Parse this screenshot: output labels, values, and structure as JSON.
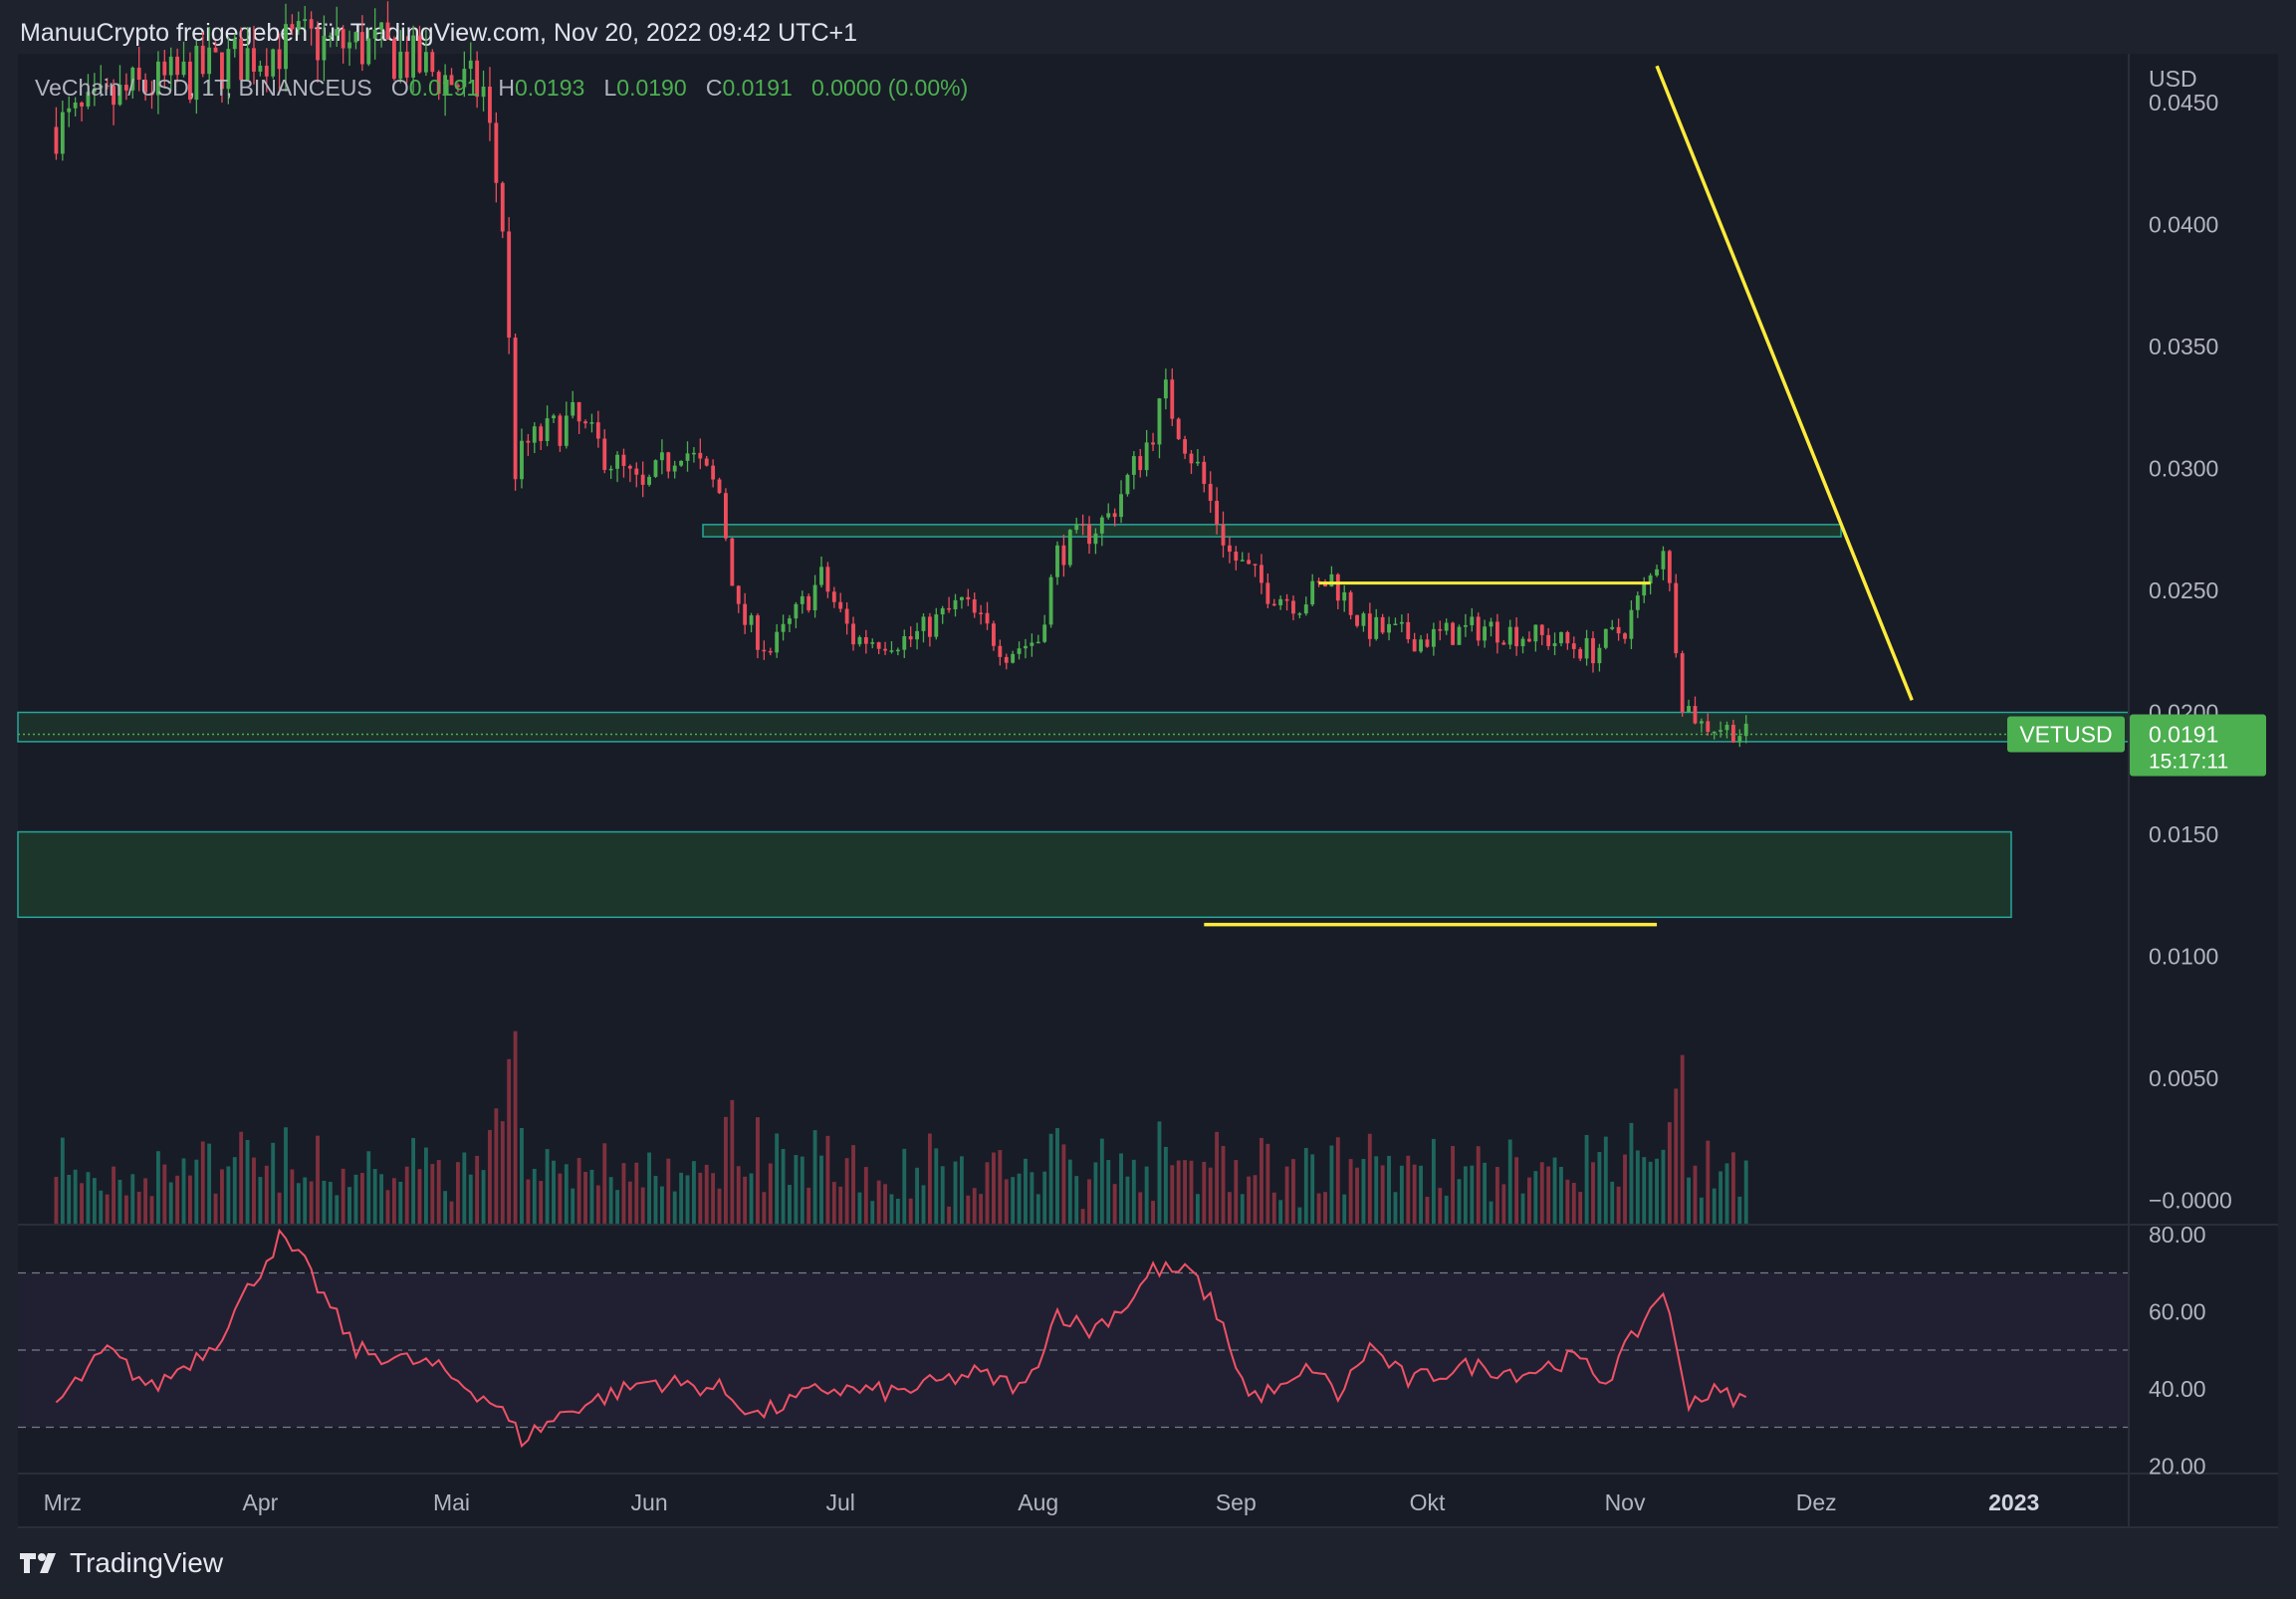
{
  "header": {
    "publisher_line": "ManuuCrypto freigegeben für TradingView.com, Nov 20, 2022 09:42 UTC+1"
  },
  "legend": {
    "symbol": "VeChain / USD, 1T, BINANCEUS",
    "o_label": "O",
    "o_value": "0.0191",
    "h_label": "H",
    "h_value": "0.0193",
    "l_label": "L",
    "l_value": "0.0190",
    "c_label": "C",
    "c_value": "0.0191",
    "change": "0.0000 (0.00%)"
  },
  "price_axis": {
    "currency": "USD",
    "ticks": [
      "0.0450",
      "0.0400",
      "0.0350",
      "0.0300",
      "0.0250",
      "0.0200",
      "0.0150",
      "0.0100",
      "0.0050",
      "−0.0000"
    ]
  },
  "rsi_axis": {
    "ticks": [
      "80.00",
      "60.00",
      "40.00",
      "20.00"
    ]
  },
  "time_axis": {
    "ticks": [
      "Mrz",
      "Apr",
      "Mai",
      "Jun",
      "Jul",
      "Aug",
      "Sep",
      "Okt",
      "Nov",
      "Dez",
      "2023"
    ]
  },
  "last_price": {
    "symbol_tag": "VETUSD",
    "price": "0.0191",
    "countdown": "15:17:11"
  },
  "brand": {
    "name": "TradingView"
  },
  "colors": {
    "background": "#181c27",
    "up": "#4caf50",
    "down": "#ef4d5c",
    "zone_fill": "#1f3b2e",
    "zone_border": "#26a69a",
    "yellow": "#ffeb3b",
    "rsi_line": "#f05166",
    "rsi_band": "#7e57c2",
    "price_tag": "#4caf50"
  },
  "chart_data": {
    "type": "candlestick",
    "symbol": "VETUSD",
    "interval": "1D",
    "price_range": [
      -0.001,
      0.047
    ],
    "close_path": [
      {
        "x": "2022-02-28",
        "y": 0.044
      },
      {
        "x": "2022-03-05",
        "y": 0.0445
      },
      {
        "x": "2022-03-12",
        "y": 0.0455
      },
      {
        "x": "2022-03-20",
        "y": 0.046
      },
      {
        "x": "2022-03-31",
        "y": 0.047
      },
      {
        "x": "2022-04-08",
        "y": 0.0475
      },
      {
        "x": "2022-04-20",
        "y": 0.0472
      },
      {
        "x": "2022-04-30",
        "y": 0.046
      },
      {
        "x": "2022-05-06",
        "y": 0.0455
      },
      {
        "x": "2022-05-09",
        "y": 0.04
      },
      {
        "x": "2022-05-11",
        "y": 0.03
      },
      {
        "x": "2022-05-13",
        "y": 0.031
      },
      {
        "x": "2022-05-20",
        "y": 0.032
      },
      {
        "x": "2022-05-31",
        "y": 0.029
      },
      {
        "x": "2022-06-06",
        "y": 0.031
      },
      {
        "x": "2022-06-12",
        "y": 0.029
      },
      {
        "x": "2022-06-15",
        "y": 0.024
      },
      {
        "x": "2022-06-20",
        "y": 0.0225
      },
      {
        "x": "2022-06-28",
        "y": 0.0255
      },
      {
        "x": "2022-07-03",
        "y": 0.023
      },
      {
        "x": "2022-07-12",
        "y": 0.023
      },
      {
        "x": "2022-07-20",
        "y": 0.0245
      },
      {
        "x": "2022-07-27",
        "y": 0.0225
      },
      {
        "x": "2022-08-01",
        "y": 0.023
      },
      {
        "x": "2022-08-04",
        "y": 0.0265
      },
      {
        "x": "2022-08-12",
        "y": 0.028
      },
      {
        "x": "2022-08-18",
        "y": 0.031
      },
      {
        "x": "2022-08-21",
        "y": 0.033
      },
      {
        "x": "2022-08-26",
        "y": 0.03
      },
      {
        "x": "2022-08-31",
        "y": 0.0265
      },
      {
        "x": "2022-09-06",
        "y": 0.025
      },
      {
        "x": "2022-09-11",
        "y": 0.0245
      },
      {
        "x": "2022-09-16",
        "y": 0.0255
      },
      {
        "x": "2022-09-21",
        "y": 0.0235
      },
      {
        "x": "2022-09-30",
        "y": 0.023
      },
      {
        "x": "2022-10-10",
        "y": 0.0235
      },
      {
        "x": "2022-10-20",
        "y": 0.023
      },
      {
        "x": "2022-10-27",
        "y": 0.0225
      },
      {
        "x": "2022-11-01",
        "y": 0.0235
      },
      {
        "x": "2022-11-05",
        "y": 0.0255
      },
      {
        "x": "2022-11-07",
        "y": 0.027
      },
      {
        "x": "2022-11-09",
        "y": 0.023
      },
      {
        "x": "2022-11-10",
        "y": 0.0205
      },
      {
        "x": "2022-11-13",
        "y": 0.0195
      },
      {
        "x": "2022-11-16",
        "y": 0.0194
      },
      {
        "x": "2022-11-20",
        "y": 0.0191
      }
    ],
    "last": {
      "open": 0.0191,
      "high": 0.0193,
      "low": 0.019,
      "close": 0.0191
    },
    "annotations": {
      "resistance_zone": [
        0.0272,
        0.0277
      ],
      "support_zone": [
        0.0188,
        0.02
      ],
      "demand_zone": [
        0.0116,
        0.0151
      ],
      "yellow_hline_1": {
        "y": 0.0253,
        "from": "2022-09-14",
        "to": "2022-11-05"
      },
      "yellow_hline_2": {
        "y": 0.0113,
        "from": "2022-08-27",
        "to": "2022-11-06"
      },
      "yellow_trendline": {
        "from": {
          "x": "2022-11-06",
          "y": 0.0465
        },
        "to": {
          "x": "2022-12-16",
          "y": 0.0205
        }
      }
    },
    "rsi": {
      "range": [
        18,
        82
      ],
      "band": [
        30,
        70
      ],
      "path": [
        {
          "x": "2022-02-28",
          "y": 36
        },
        {
          "x": "2022-03-08",
          "y": 50
        },
        {
          "x": "2022-03-15",
          "y": 40
        },
        {
          "x": "2022-03-25",
          "y": 52
        },
        {
          "x": "2022-04-04",
          "y": 79
        },
        {
          "x": "2022-04-08",
          "y": 72
        },
        {
          "x": "2022-04-16",
          "y": 50
        },
        {
          "x": "2022-04-28",
          "y": 46
        },
        {
          "x": "2022-05-08",
          "y": 36
        },
        {
          "x": "2022-05-12",
          "y": 27
        },
        {
          "x": "2022-05-20",
          "y": 35
        },
        {
          "x": "2022-06-01",
          "y": 42
        },
        {
          "x": "2022-06-12",
          "y": 40
        },
        {
          "x": "2022-06-18",
          "y": 33
        },
        {
          "x": "2022-06-28",
          "y": 40
        },
        {
          "x": "2022-07-10",
          "y": 39
        },
        {
          "x": "2022-07-22",
          "y": 44
        },
        {
          "x": "2022-07-30",
          "y": 40
        },
        {
          "x": "2022-08-04",
          "y": 60
        },
        {
          "x": "2022-08-09",
          "y": 55
        },
        {
          "x": "2022-08-15",
          "y": 62
        },
        {
          "x": "2022-08-19",
          "y": 71
        },
        {
          "x": "2022-08-25",
          "y": 70
        },
        {
          "x": "2022-08-29",
          "y": 60
        },
        {
          "x": "2022-09-03",
          "y": 38
        },
        {
          "x": "2022-09-09",
          "y": 40
        },
        {
          "x": "2022-09-13",
          "y": 46
        },
        {
          "x": "2022-09-17",
          "y": 38
        },
        {
          "x": "2022-09-22",
          "y": 51
        },
        {
          "x": "2022-09-28",
          "y": 42
        },
        {
          "x": "2022-10-08",
          "y": 46
        },
        {
          "x": "2022-10-16",
          "y": 44
        },
        {
          "x": "2022-10-24",
          "y": 48
        },
        {
          "x": "2022-10-29",
          "y": 42
        },
        {
          "x": "2022-11-03",
          "y": 55
        },
        {
          "x": "2022-11-07",
          "y": 66
        },
        {
          "x": "2022-11-09",
          "y": 50
        },
        {
          "x": "2022-11-11",
          "y": 37
        },
        {
          "x": "2022-11-15",
          "y": 39
        },
        {
          "x": "2022-11-20",
          "y": 37
        }
      ]
    }
  }
}
